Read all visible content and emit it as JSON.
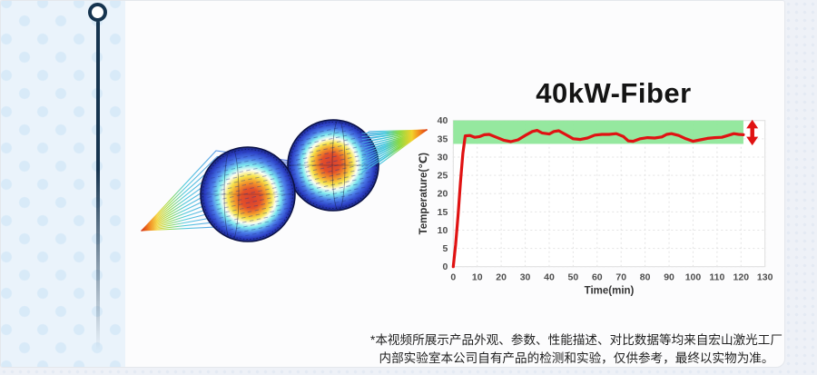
{
  "slide": {
    "background_color": "#eef1f7",
    "card_color": "#fcfcfd",
    "side_panel_color": "#eaf3fb",
    "pin_color": "#16344f"
  },
  "icons": {
    "pin": "pin-with-ring-and-hanging-line",
    "fluctuation_arrow": "red-double-vertical-arrow"
  },
  "chart_data": {
    "type": "line",
    "title": "40kW-Fiber",
    "xlabel": "Time(min)",
    "ylabel": "Temperature(℃)",
    "xlim": [
      0,
      130
    ],
    "ylim": [
      0,
      40
    ],
    "xticks": [
      0,
      10,
      20,
      30,
      40,
      50,
      60,
      70,
      80,
      90,
      100,
      110,
      120,
      130
    ],
    "yticks": [
      0,
      5,
      10,
      15,
      20,
      25,
      30,
      35,
      40
    ],
    "grid": true,
    "legend": "none",
    "series": [
      {
        "name": "40kW-Fiber temperature",
        "color": "#e01212",
        "x": [
          0,
          1,
          2,
          3,
          4,
          5,
          7,
          9,
          11,
          13,
          15,
          18,
          21,
          24,
          27,
          30,
          33,
          35,
          37,
          40,
          42,
          44,
          47,
          50,
          53,
          56,
          59,
          62,
          65,
          68,
          71,
          73,
          75,
          78,
          81,
          84,
          87,
          89,
          91,
          94,
          97,
          100,
          103,
          106,
          109,
          112,
          115,
          117,
          119,
          121
        ],
        "y": [
          0,
          6,
          14,
          23,
          31,
          35.8,
          35.9,
          35.4,
          35.6,
          36.1,
          36.2,
          35.4,
          34.6,
          34.2,
          34.7,
          35.9,
          37.0,
          37.3,
          36.6,
          36.3,
          37.0,
          37.2,
          36.1,
          35.0,
          34.8,
          35.2,
          36.0,
          36.2,
          36.2,
          36.4,
          35.6,
          34.4,
          34.3,
          35.0,
          35.3,
          35.2,
          35.5,
          36.2,
          36.4,
          35.9,
          35.0,
          34.3,
          34.7,
          35.1,
          35.3,
          35.4,
          36.0,
          36.4,
          36.2,
          36.1
        ]
      }
    ],
    "band": {
      "x_from": 0,
      "x_to": 121,
      "y_from": 33.6,
      "y_to": 40,
      "color": "#8fe79a"
    },
    "annotation_arrow": {
      "x": 124.7,
      "y_from": 33.2,
      "y_to": 40.2,
      "color": "#e01212"
    }
  },
  "disclaimer": {
    "line1": "*本视频所展示产品外观、参数、性能描述、对比数据等均来自宏山激光工厂",
    "line2": "内部实验室本公司自有产品的检测和实验，仅供参考，最终以实物为准。"
  }
}
